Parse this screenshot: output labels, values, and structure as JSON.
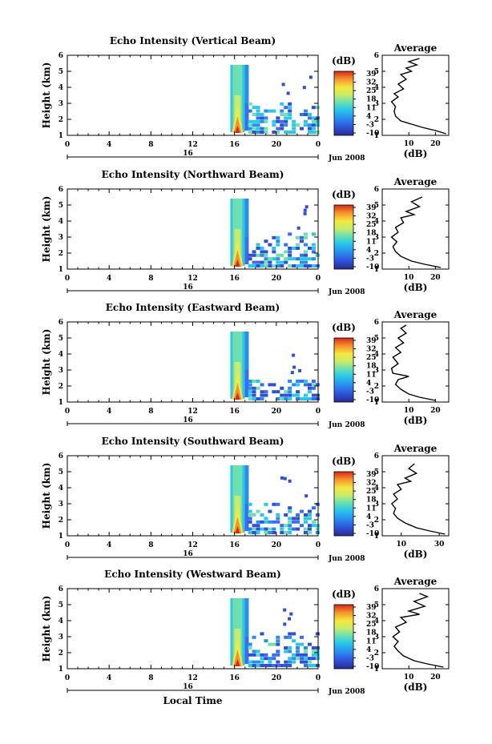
{
  "colorbar": {
    "unit_label": "(dB)",
    "ticks": [
      "39",
      "32",
      "25",
      "18",
      "11",
      "4",
      "-3",
      "-10"
    ]
  },
  "xaxis": {
    "tick_labels": [
      "0",
      "4",
      "8",
      "12",
      "16",
      "20",
      "0"
    ],
    "day_label": "16",
    "month_label": "Jun 2008",
    "xlabel": "Local Time"
  },
  "chart_data": [
    {
      "type": "heatmap",
      "title": "Echo Intensity (Vertical Beam)",
      "ylabel": "Height (km)",
      "xlim_hours": [
        0,
        24
      ],
      "ylim_km": [
        1,
        6
      ],
      "ytick_labels": [
        "1",
        "2",
        "3",
        "4",
        "5",
        "6"
      ],
      "data_start_hour": 15.6,
      "data_end_hour": 24,
      "scatter_top_km": 3.2,
      "colorbar_range_db": [
        -10,
        39
      ],
      "average": {
        "title": "Average",
        "xlabel": "(dB)",
        "xtick_labels": [
          "10",
          "20"
        ],
        "xlim": [
          0,
          25
        ],
        "ylim_km": [
          1,
          6
        ],
        "ytick_labels": [
          "1",
          "2",
          "3",
          "4",
          "5",
          "6"
        ],
        "profile": [
          [
            24,
            1.1
          ],
          [
            20,
            1.3
          ],
          [
            15,
            1.5
          ],
          [
            11,
            1.7
          ],
          [
            7,
            1.9
          ],
          [
            5,
            2.2
          ],
          [
            4.5,
            2.5
          ],
          [
            5,
            2.8
          ],
          [
            3.5,
            3.1
          ],
          [
            6,
            3.4
          ],
          [
            4.5,
            3.6
          ],
          [
            8,
            3.9
          ],
          [
            6,
            4.2
          ],
          [
            9,
            4.5
          ],
          [
            7,
            4.8
          ],
          [
            11,
            5.0
          ],
          [
            9,
            5.2
          ],
          [
            13,
            5.4
          ],
          [
            10,
            5.6
          ],
          [
            14,
            5.8
          ]
        ]
      }
    },
    {
      "type": "heatmap",
      "title": "Echo Intensity (Northward Beam)",
      "ylabel": "Height (km)",
      "xlim_hours": [
        0,
        24
      ],
      "ylim_km": [
        1,
        6
      ],
      "ytick_labels": [
        "1",
        "2",
        "3",
        "4",
        "5",
        "6"
      ],
      "data_start_hour": 15.6,
      "data_end_hour": 24,
      "scatter_top_km": 3.4,
      "colorbar_range_db": [
        -10,
        39
      ],
      "average": {
        "title": "Average",
        "xlabel": "(dB)",
        "xtick_labels": [
          "10",
          "20"
        ],
        "xlim": [
          0,
          25
        ],
        "ylim_km": [
          1,
          6
        ],
        "ytick_labels": [
          "1",
          "2",
          "3",
          "4",
          "5",
          "6"
        ],
        "profile": [
          [
            22,
            1.1
          ],
          [
            16,
            1.3
          ],
          [
            11,
            1.5
          ],
          [
            7,
            1.8
          ],
          [
            5,
            2.1
          ],
          [
            4,
            2.4
          ],
          [
            5.5,
            2.7
          ],
          [
            3.5,
            3.0
          ],
          [
            6,
            3.3
          ],
          [
            5,
            3.6
          ],
          [
            8,
            3.9
          ],
          [
            7,
            4.2
          ],
          [
            12,
            4.4
          ],
          [
            9,
            4.6
          ],
          [
            14,
            4.9
          ],
          [
            11,
            5.2
          ],
          [
            15,
            5.5
          ]
        ]
      }
    },
    {
      "type": "heatmap",
      "title": "Echo Intensity (Eastward Beam)",
      "ylabel": "Height (km)",
      "xlim_hours": [
        0,
        24
      ],
      "ylim_km": [
        1,
        6
      ],
      "ytick_labels": [
        "1",
        "2",
        "3",
        "4",
        "5",
        "6"
      ],
      "data_start_hour": 15.6,
      "data_end_hour": 24,
      "scatter_top_km": 2.5,
      "colorbar_range_db": [
        -10,
        39
      ],
      "average": {
        "title": "Average",
        "xlabel": "(dB)",
        "xtick_labels": [
          "10",
          "20"
        ],
        "xlim": [
          0,
          25
        ],
        "ylim_km": [
          1,
          6
        ],
        "ytick_labels": [
          "1",
          "2",
          "3",
          "4",
          "5",
          "6"
        ],
        "profile": [
          [
            20,
            1.1
          ],
          [
            14,
            1.3
          ],
          [
            10,
            1.5
          ],
          [
            7,
            1.8
          ],
          [
            5,
            2.1
          ],
          [
            6,
            2.4
          ],
          [
            10,
            2.6
          ],
          [
            4,
            2.8
          ],
          [
            3.5,
            3.1
          ],
          [
            6,
            3.4
          ],
          [
            4,
            3.8
          ],
          [
            7,
            4.1
          ],
          [
            5,
            4.4
          ],
          [
            8,
            4.7
          ],
          [
            6,
            5.0
          ],
          [
            9,
            5.3
          ],
          [
            7,
            5.6
          ],
          [
            9,
            5.8
          ]
        ]
      }
    },
    {
      "type": "heatmap",
      "title": "Echo Intensity (Southward Beam)",
      "ylabel": "Height (km)",
      "xlim_hours": [
        0,
        24
      ],
      "ylim_km": [
        1,
        6
      ],
      "ytick_labels": [
        "1",
        "2",
        "3",
        "4",
        "5",
        "6"
      ],
      "data_start_hour": 15.6,
      "data_end_hour": 24,
      "scatter_top_km": 3.2,
      "colorbar_range_db": [
        -10,
        39
      ],
      "average": {
        "title": "Average",
        "xlabel": "(dB)",
        "xtick_labels": [
          "10",
          "30"
        ],
        "xlim": [
          0,
          35
        ],
        "ylim_km": [
          1,
          6
        ],
        "ytick_labels": [
          "1",
          "2",
          "3",
          "4",
          "5",
          "6"
        ],
        "profile": [
          [
            33,
            1.1
          ],
          [
            25,
            1.3
          ],
          [
            18,
            1.5
          ],
          [
            12,
            1.8
          ],
          [
            8,
            2.1
          ],
          [
            6,
            2.4
          ],
          [
            7,
            2.7
          ],
          [
            5,
            3.0
          ],
          [
            8,
            3.3
          ],
          [
            6,
            3.6
          ],
          [
            10,
            3.9
          ],
          [
            8,
            4.2
          ],
          [
            15,
            4.4
          ],
          [
            12,
            4.6
          ],
          [
            18,
            4.9
          ],
          [
            14,
            5.2
          ],
          [
            17,
            5.5
          ]
        ]
      }
    },
    {
      "type": "heatmap",
      "title": "Echo Intensity (Westward Beam)",
      "ylabel": "Height (km)",
      "xlim_hours": [
        0,
        24
      ],
      "ylim_km": [
        1,
        6
      ],
      "ytick_labels": [
        "1",
        "2",
        "3",
        "4",
        "5",
        "6"
      ],
      "data_start_hour": 15.6,
      "data_end_hour": 24,
      "scatter_top_km": 3.3,
      "colorbar_range_db": [
        -10,
        39
      ],
      "average": {
        "title": "Average",
        "xlabel": "(dB)",
        "xtick_labels": [
          "10",
          "20"
        ],
        "xlim": [
          0,
          25
        ],
        "ylim_km": [
          1,
          6
        ],
        "ytick_labels": [
          "1",
          "2",
          "3",
          "4",
          "5",
          "6"
        ],
        "profile": [
          [
            23,
            1.1
          ],
          [
            17,
            1.3
          ],
          [
            12,
            1.5
          ],
          [
            8,
            1.8
          ],
          [
            6,
            2.1
          ],
          [
            4.5,
            2.4
          ],
          [
            6,
            2.7
          ],
          [
            4,
            3.0
          ],
          [
            6.5,
            3.3
          ],
          [
            5,
            3.6
          ],
          [
            9,
            3.9
          ],
          [
            7,
            4.2
          ],
          [
            14,
            4.4
          ],
          [
            10,
            4.6
          ],
          [
            16,
            4.9
          ],
          [
            12,
            5.2
          ],
          [
            17,
            5.5
          ],
          [
            14,
            5.7
          ]
        ]
      }
    }
  ]
}
